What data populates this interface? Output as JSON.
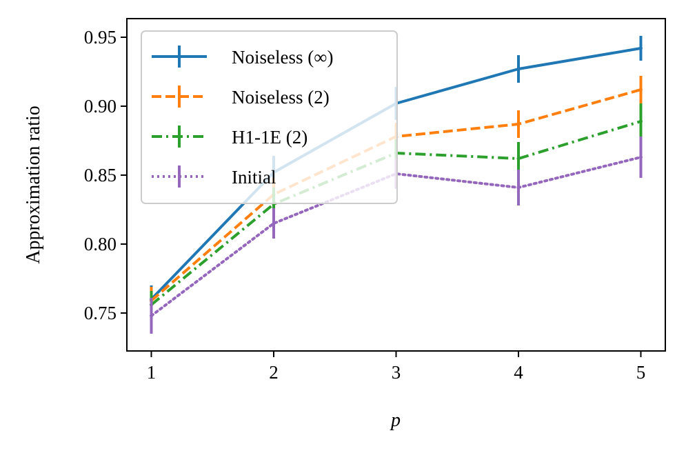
{
  "chart_data": {
    "type": "line",
    "title": "",
    "xlabel": "p",
    "ylabel": "Approximation ratio",
    "x": [
      1,
      2,
      3,
      4,
      5
    ],
    "xlim": [
      0.8,
      5.2
    ],
    "ylim": [
      0.7225,
      0.9635
    ],
    "xticks": [
      1,
      2,
      3,
      4,
      5
    ],
    "xtick_labels": [
      "1",
      "2",
      "3",
      "4",
      "5"
    ],
    "yticks": [
      0.75,
      0.8,
      0.85,
      0.9,
      0.95
    ],
    "ytick_labels": [
      "0.75",
      "0.80",
      "0.85",
      "0.90",
      "0.95"
    ],
    "grid": false,
    "legend_position": "top-left",
    "series": [
      {
        "name": "Noiseless (∞)",
        "color": "#1f77b4",
        "linestyle": "solid",
        "values": [
          0.76,
          0.852,
          0.902,
          0.927,
          0.942
        ],
        "errors": [
          0.01,
          0.012,
          0.012,
          0.01,
          0.009
        ]
      },
      {
        "name": "Noiseless (2)",
        "color": "#ff7f0e",
        "linestyle": "dashed",
        "values": [
          0.759,
          0.836,
          0.878,
          0.887,
          0.912
        ],
        "errors": [
          0.01,
          0.012,
          0.01,
          0.01,
          0.01
        ]
      },
      {
        "name": "H1-1E (2)",
        "color": "#2ca02c",
        "linestyle": "dashdot",
        "values": [
          0.756,
          0.829,
          0.866,
          0.862,
          0.889
        ],
        "errors": [
          0.01,
          0.012,
          0.01,
          0.012,
          0.013
        ]
      },
      {
        "name": "Initial",
        "color": "#9467bd",
        "linestyle": "dotted",
        "values": [
          0.748,
          0.815,
          0.851,
          0.841,
          0.863
        ],
        "errors": [
          0.013,
          0.011,
          0.011,
          0.013,
          0.015
        ]
      }
    ]
  }
}
